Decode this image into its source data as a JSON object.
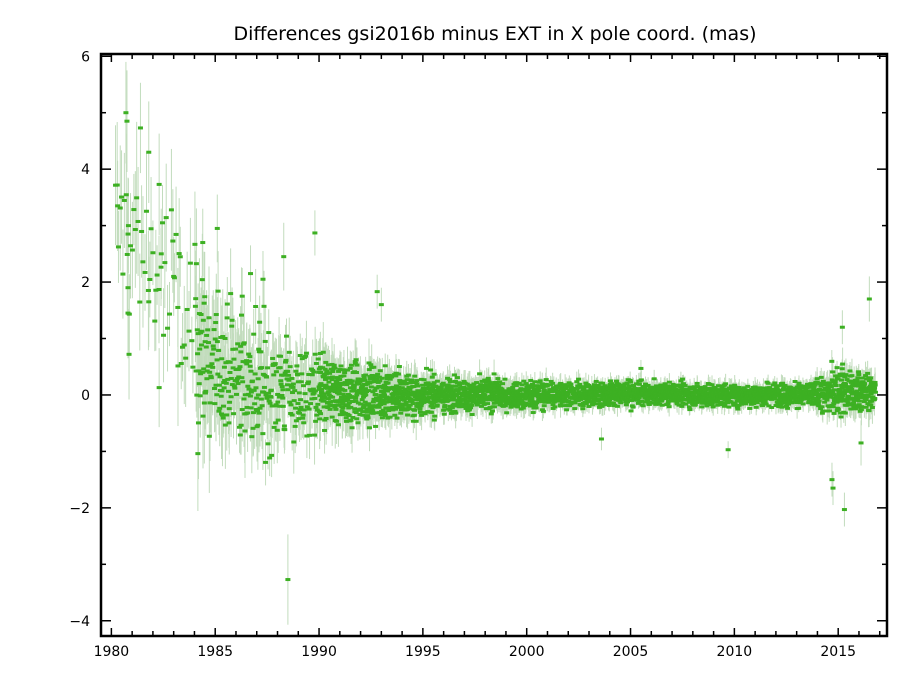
{
  "chart_data": {
    "type": "scatter",
    "title": "Differences gsi2016b minus EXT in X pole coord. (mas)",
    "xlabel": "",
    "ylabel": "",
    "xlim": [
      1979.5,
      2017.35
    ],
    "ylim": [
      -4.27,
      6.04
    ],
    "grid": false,
    "legend": "none",
    "x_ticks": [
      "1980",
      "1985",
      "1990",
      "1995",
      "2000",
      "2005",
      "2010",
      "2015"
    ],
    "x_tick_values": [
      1980,
      1985,
      1990,
      1995,
      2000,
      2005,
      2010,
      2015
    ],
    "y_ticks": [
      "−4",
      "−2",
      "0",
      "2",
      "4",
      "6"
    ],
    "y_tick_values": [
      -4,
      -2,
      0,
      2,
      4,
      6
    ],
    "colors": {
      "points": "#3db023",
      "error_bars": "#c2dcbd",
      "frame": "#000000"
    },
    "series": [
      {
        "name": "gsi2016b minus EXT",
        "highlighted_points": [
          {
            "x": 1980.3,
            "y": 3.35,
            "err": 0.8
          },
          {
            "x": 1980.7,
            "y": 5.0,
            "err": 0.9
          },
          {
            "x": 1980.75,
            "y": 4.85,
            "err": 0.9
          },
          {
            "x": 1980.8,
            "y": 2.85,
            "err": 1.0
          },
          {
            "x": 1980.8,
            "y": 1.9,
            "err": 0.9
          },
          {
            "x": 1980.8,
            "y": 1.45,
            "err": 0.8
          },
          {
            "x": 1980.85,
            "y": 0.72,
            "err": 0.8
          },
          {
            "x": 1981.4,
            "y": 4.73,
            "err": 0.8
          },
          {
            "x": 1981.8,
            "y": 4.3,
            "err": 0.9
          },
          {
            "x": 1981.8,
            "y": 1.65,
            "err": 0.8
          },
          {
            "x": 1982.3,
            "y": 3.73,
            "err": 0.9
          },
          {
            "x": 1982.4,
            "y": 2.5,
            "err": 0.8
          },
          {
            "x": 1982.3,
            "y": 0.13,
            "err": 0.7
          },
          {
            "x": 1983.0,
            "y": 2.1,
            "err": 0.7
          },
          {
            "x": 1983.2,
            "y": 1.55,
            "err": 0.7
          },
          {
            "x": 1984.3,
            "y": 1.1,
            "err": 0.7
          },
          {
            "x": 1984.4,
            "y": 2.7,
            "err": 0.6
          },
          {
            "x": 1985.1,
            "y": 2.95,
            "err": 0.6
          },
          {
            "x": 1986.3,
            "y": 1.75,
            "err": 0.5
          },
          {
            "x": 1986.7,
            "y": 2.15,
            "err": 0.5
          },
          {
            "x": 1987.3,
            "y": 2.05,
            "err": 0.5
          },
          {
            "x": 1988.3,
            "y": 2.45,
            "err": 0.6
          },
          {
            "x": 1988.5,
            "y": -3.27,
            "err": 0.8
          },
          {
            "x": 1989.8,
            "y": 2.87,
            "err": 0.4
          },
          {
            "x": 1992.8,
            "y": 1.83,
            "err": 0.3
          },
          {
            "x": 1993.0,
            "y": 1.6,
            "err": 0.3
          },
          {
            "x": 2003.6,
            "y": -0.78,
            "err": 0.2
          },
          {
            "x": 2005.5,
            "y": 0.47,
            "err": 0.15
          },
          {
            "x": 2009.7,
            "y": -0.97,
            "err": 0.15
          },
          {
            "x": 2014.7,
            "y": -1.5,
            "err": 0.3
          },
          {
            "x": 2014.75,
            "y": -1.65,
            "err": 0.3
          },
          {
            "x": 2015.3,
            "y": -2.03,
            "err": 0.3
          },
          {
            "x": 2015.2,
            "y": 1.2,
            "err": 0.3
          },
          {
            "x": 2016.1,
            "y": -0.85,
            "err": 0.4
          },
          {
            "x": 2016.5,
            "y": 1.7,
            "err": 0.4
          }
        ],
        "bulk_envelope": [
          {
            "x": 1980.5,
            "center": 2.9,
            "spread": 0.8,
            "err": 0.9
          },
          {
            "x": 1982.0,
            "center": 2.4,
            "spread": 0.9,
            "err": 0.9
          },
          {
            "x": 1983.5,
            "center": 1.2,
            "spread": 1.0,
            "err": 0.8
          },
          {
            "x": 1985.0,
            "center": 0.45,
            "spread": 0.6,
            "err": 0.7
          },
          {
            "x": 1987.0,
            "center": 0.2,
            "spread": 0.55,
            "err": 0.55
          },
          {
            "x": 1989.0,
            "center": 0.05,
            "spread": 0.4,
            "err": 0.4
          },
          {
            "x": 1992.0,
            "center": 0.02,
            "spread": 0.25,
            "err": 0.3
          },
          {
            "x": 1996.0,
            "center": 0.0,
            "spread": 0.15,
            "err": 0.2
          },
          {
            "x": 2000.0,
            "center": 0.0,
            "spread": 0.12,
            "err": 0.15
          },
          {
            "x": 2005.0,
            "center": 0.02,
            "spread": 0.1,
            "err": 0.12
          },
          {
            "x": 2010.0,
            "center": 0.0,
            "spread": 0.1,
            "err": 0.12
          },
          {
            "x": 2013.5,
            "center": 0.0,
            "spread": 0.1,
            "err": 0.12
          },
          {
            "x": 2015.0,
            "center": 0.05,
            "spread": 0.22,
            "err": 0.2
          },
          {
            "x": 2016.8,
            "center": 0.05,
            "spread": 0.15,
            "err": 0.2
          }
        ]
      }
    ]
  }
}
